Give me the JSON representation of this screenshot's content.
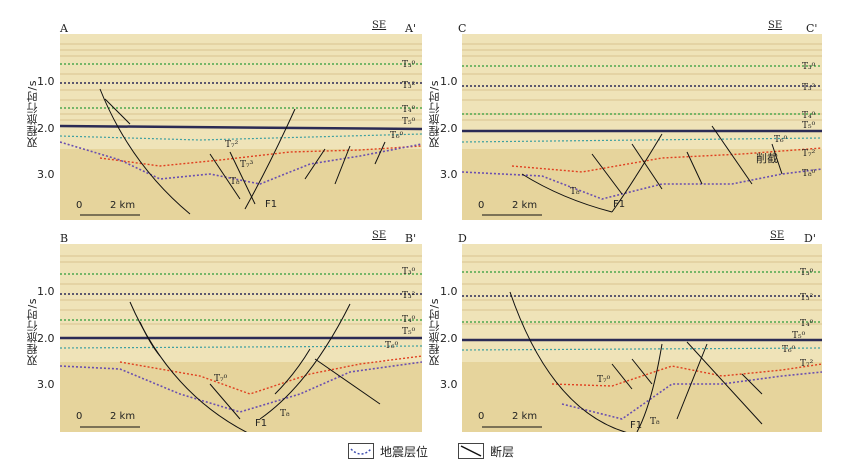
{
  "figure": {
    "y_axis_label": "双程旅行时/s",
    "y_ticks": [
      "1.0",
      "2.0",
      "3.0"
    ],
    "scale_label": "2 km",
    "scale_zero": "0",
    "direction": "SE",
    "fault_label": "F1",
    "cut_label": "削截"
  },
  "panels": [
    {
      "id": "A",
      "start": "A",
      "end": "A'"
    },
    {
      "id": "C",
      "start": "C",
      "end": "C'"
    },
    {
      "id": "B",
      "start": "B",
      "end": "B'"
    },
    {
      "id": "D",
      "start": "D",
      "end": "D'"
    }
  ],
  "horizons": {
    "T30": "T3⁰",
    "T32": "T3²",
    "T40": "T4⁰",
    "T50": "T5⁰",
    "T60": "T6⁰",
    "T70": "T7⁰",
    "T72": "T7²",
    "T73": "T7³",
    "T80": "T8⁰",
    "T8": "T8"
  },
  "legend": {
    "horizon_label": "地震层位",
    "fault_label": "断层"
  },
  "colors": {
    "horizon_green": "#2f9a3a",
    "horizon_dark": "#2b2b55",
    "horizon_blue": "#3f6fd0",
    "horizon_red": "#e04020",
    "horizon_purple": "#6a4fb0",
    "fault": "#111111",
    "seismic_bg": "#efe3b8"
  }
}
